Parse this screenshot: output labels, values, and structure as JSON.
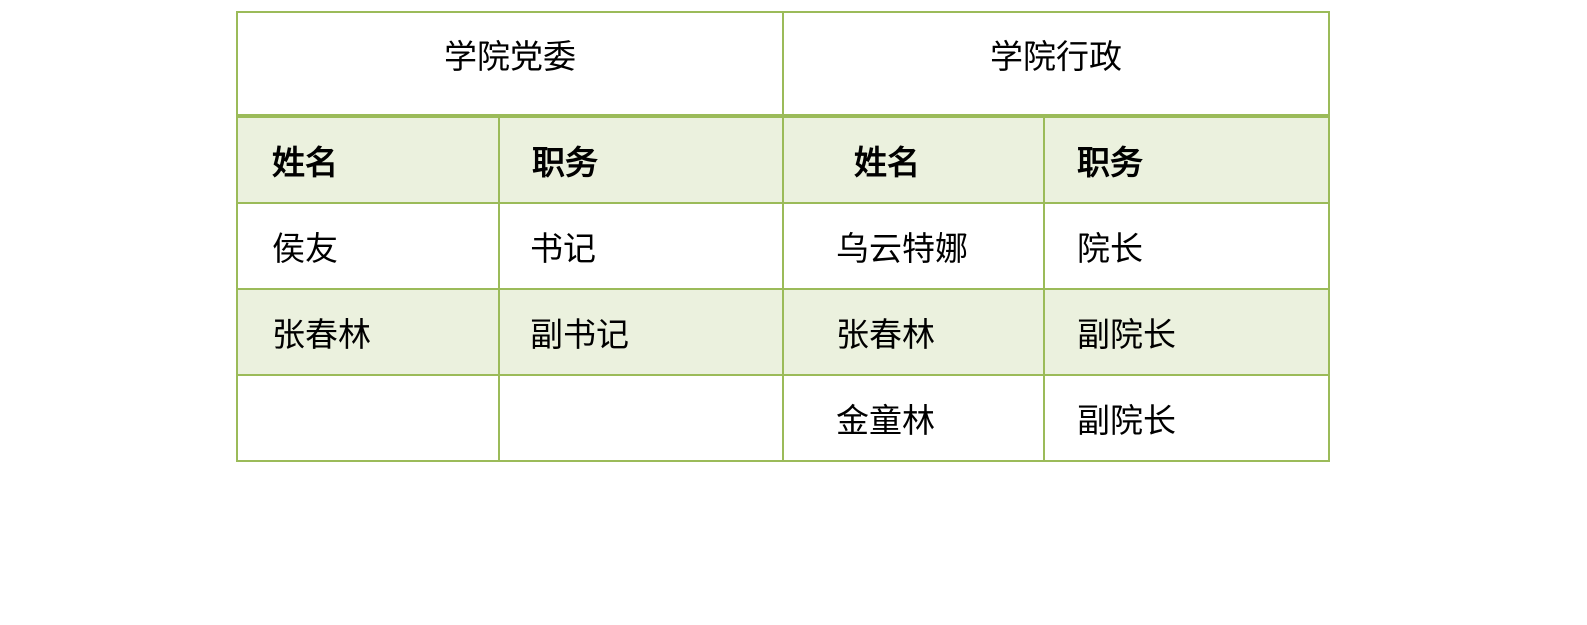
{
  "table": {
    "groups": [
      "学院党委",
      "学院行政"
    ],
    "headers": [
      "姓名",
      "职务",
      "姓名",
      "职务"
    ],
    "rows": [
      [
        "侯友",
        "书记",
        "乌云特娜",
        "院长"
      ],
      [
        "张春林",
        "副书记",
        "张春林",
        "副院长"
      ],
      [
        "",
        "",
        "金童林",
        "副院长"
      ]
    ]
  },
  "colors": {
    "border": "#9bbb59",
    "band_fill": "#ebf1de"
  }
}
